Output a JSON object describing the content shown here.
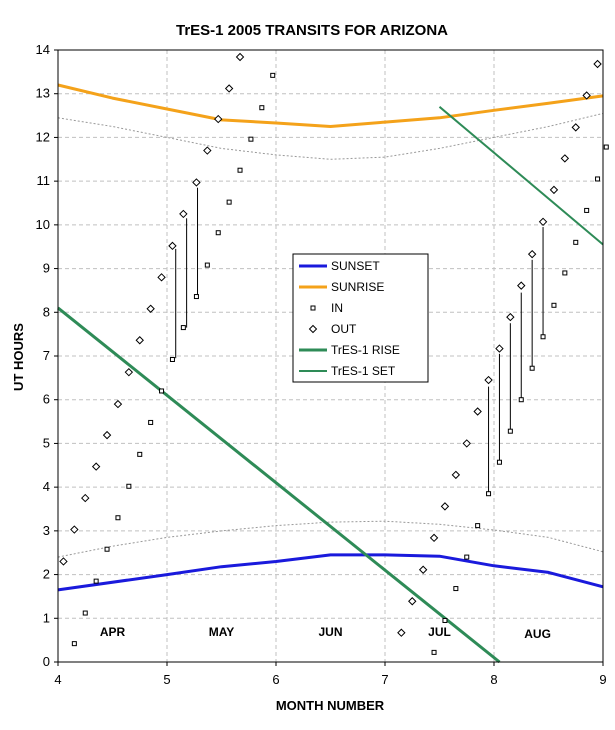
{
  "chart_data": {
    "type": "line",
    "title": "TrES-1 2005 TRANSITS FOR ARIZONA",
    "xlabel": "MONTH NUMBER",
    "ylabel": "UT HOURS",
    "xlim": [
      4,
      9
    ],
    "ylim": [
      0,
      14
    ],
    "x_ticks": [
      4,
      5,
      6,
      7,
      8,
      9
    ],
    "y_ticks": [
      0,
      1,
      2,
      3,
      4,
      5,
      6,
      7,
      8,
      9,
      10,
      11,
      12,
      13,
      14
    ],
    "grid": true,
    "legend_position": "center",
    "month_labels": [
      {
        "text": "APR",
        "x": 4.5,
        "y": 0.6
      },
      {
        "text": "MAY",
        "x": 5.5,
        "y": 0.6
      },
      {
        "text": "JUN",
        "x": 6.5,
        "y": 0.6
      },
      {
        "text": "JUL",
        "x": 7.5,
        "y": 0.6
      },
      {
        "text": "AUG",
        "x": 8.4,
        "y": 0.55
      }
    ],
    "series": [
      {
        "name": "SUNSET",
        "kind": "line",
        "color": "#1a1adc",
        "width": 3,
        "points": [
          [
            4,
            1.65
          ],
          [
            5,
            2.0
          ],
          [
            5.5,
            2.18
          ],
          [
            6,
            2.3
          ],
          [
            6.5,
            2.45
          ],
          [
            7,
            2.45
          ],
          [
            7.5,
            2.42
          ],
          [
            8,
            2.2
          ],
          [
            8.5,
            2.05
          ],
          [
            9,
            1.72
          ]
        ]
      },
      {
        "name": "SUNRISE",
        "kind": "line",
        "color": "#f4a21a",
        "width": 3,
        "points": [
          [
            4,
            13.2
          ],
          [
            4.5,
            12.9
          ],
          [
            5,
            12.65
          ],
          [
            5.5,
            12.4
          ],
          [
            6,
            12.33
          ],
          [
            6.5,
            12.25
          ],
          [
            7,
            12.35
          ],
          [
            7.5,
            12.45
          ],
          [
            8,
            12.62
          ],
          [
            8.5,
            12.78
          ],
          [
            9,
            12.95
          ]
        ]
      },
      {
        "name": "IN",
        "kind": "marker",
        "marker": "square",
        "points": [
          [
            4.15,
            0.42
          ],
          [
            4.25,
            1.12
          ],
          [
            4.35,
            1.85
          ],
          [
            4.45,
            2.58
          ],
          [
            4.55,
            3.3
          ],
          [
            4.65,
            4.02
          ],
          [
            4.75,
            4.75
          ],
          [
            4.85,
            5.48
          ],
          [
            4.95,
            6.2
          ],
          [
            5.05,
            6.92
          ],
          [
            5.15,
            7.65
          ],
          [
            5.27,
            8.36
          ],
          [
            5.37,
            9.08
          ],
          [
            5.47,
            9.82
          ],
          [
            5.57,
            10.52
          ],
          [
            5.67,
            11.25
          ],
          [
            5.77,
            11.96
          ],
          [
            5.87,
            12.68
          ],
          [
            5.97,
            13.42
          ],
          [
            7.45,
            0.22
          ],
          [
            7.55,
            0.95
          ],
          [
            7.65,
            1.68
          ],
          [
            7.75,
            2.4
          ],
          [
            7.85,
            3.12
          ],
          [
            7.95,
            3.85
          ],
          [
            8.05,
            4.57
          ],
          [
            8.15,
            5.28
          ],
          [
            8.25,
            6.0
          ],
          [
            8.35,
            6.72
          ],
          [
            8.45,
            7.44
          ],
          [
            8.55,
            8.16
          ],
          [
            8.65,
            8.9
          ],
          [
            8.75,
            9.6
          ],
          [
            8.85,
            10.33
          ],
          [
            8.95,
            11.05
          ],
          [
            9.03,
            11.78
          ]
        ]
      },
      {
        "name": "OUT",
        "kind": "marker",
        "marker": "diamond",
        "points": [
          [
            4.05,
            2.3
          ],
          [
            4.15,
            3.03
          ],
          [
            4.25,
            3.75
          ],
          [
            4.35,
            4.47
          ],
          [
            4.45,
            5.19
          ],
          [
            4.55,
            5.9
          ],
          [
            4.65,
            6.63
          ],
          [
            4.75,
            7.36
          ],
          [
            4.85,
            8.08
          ],
          [
            4.95,
            8.8
          ],
          [
            5.05,
            9.52
          ],
          [
            5.15,
            10.25
          ],
          [
            5.27,
            10.97
          ],
          [
            5.37,
            11.7
          ],
          [
            5.47,
            12.42
          ],
          [
            5.57,
            13.12
          ],
          [
            5.67,
            13.84
          ],
          [
            7.15,
            0.67
          ],
          [
            7.25,
            1.39
          ],
          [
            7.35,
            2.11
          ],
          [
            7.45,
            2.84
          ],
          [
            7.55,
            3.56
          ],
          [
            7.65,
            4.28
          ],
          [
            7.75,
            5.0
          ],
          [
            7.85,
            5.73
          ],
          [
            7.95,
            6.45
          ],
          [
            8.05,
            7.17
          ],
          [
            8.15,
            7.89
          ],
          [
            8.25,
            8.61
          ],
          [
            8.35,
            9.33
          ],
          [
            8.45,
            10.07
          ],
          [
            8.55,
            10.8
          ],
          [
            8.65,
            11.52
          ],
          [
            8.75,
            12.23
          ],
          [
            8.85,
            12.96
          ],
          [
            8.95,
            13.68
          ]
        ]
      },
      {
        "name": "TrES-1 RISE",
        "kind": "line",
        "color": "#2e8b57",
        "width": 3,
        "points": [
          [
            4,
            8.1
          ],
          [
            8.05,
            0.0
          ]
        ]
      },
      {
        "name": "TrES-1 SET",
        "kind": "line",
        "color": "#2e8b57",
        "width": 2,
        "points": [
          [
            7.5,
            12.7
          ],
          [
            9,
            9.55
          ]
        ]
      },
      {
        "name": "",
        "kind": "dotted",
        "color": "#999999",
        "points": [
          [
            4,
            12.45
          ],
          [
            4.5,
            12.25
          ],
          [
            5,
            12.0
          ],
          [
            5.5,
            11.75
          ],
          [
            6,
            11.6
          ],
          [
            6.5,
            11.5
          ],
          [
            7,
            11.55
          ],
          [
            7.5,
            11.75
          ],
          [
            8,
            12.0
          ],
          [
            8.5,
            12.25
          ],
          [
            9,
            12.55
          ]
        ]
      },
      {
        "name": "",
        "kind": "dotted",
        "color": "#999999",
        "points": [
          [
            4,
            2.4
          ],
          [
            4.5,
            2.65
          ],
          [
            5,
            2.85
          ],
          [
            5.5,
            3.0
          ],
          [
            6,
            3.12
          ],
          [
            6.5,
            3.2
          ],
          [
            7,
            3.22
          ],
          [
            7.5,
            3.15
          ],
          [
            8,
            3.02
          ],
          [
            8.5,
            2.85
          ],
          [
            9,
            2.52
          ]
        ]
      }
    ],
    "transit_bars": [
      {
        "x": 5.08,
        "y": [
          6.95,
          9.45
        ]
      },
      {
        "x": 5.18,
        "y": [
          7.65,
          10.15
        ]
      },
      {
        "x": 5.28,
        "y": [
          8.4,
          10.85
        ]
      },
      {
        "x": 7.95,
        "y": [
          3.85,
          6.3
        ]
      },
      {
        "x": 8.05,
        "y": [
          4.6,
          7.05
        ]
      },
      {
        "x": 8.15,
        "y": [
          5.3,
          7.75
        ]
      },
      {
        "x": 8.25,
        "y": [
          6.02,
          8.45
        ]
      },
      {
        "x": 8.35,
        "y": [
          6.75,
          9.2
        ]
      },
      {
        "x": 8.45,
        "y": [
          7.45,
          9.95
        ]
      }
    ]
  }
}
